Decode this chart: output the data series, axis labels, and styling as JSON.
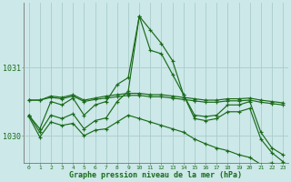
{
  "title": "Graphe pression niveau de la mer (hPa)",
  "bg_color": "#cce8e8",
  "grid_color": "#aacccc",
  "line_color": "#1a6b1a",
  "x_labels": [
    "0",
    "1",
    "2",
    "3",
    "4",
    "5",
    "6",
    "7",
    "8",
    "9",
    "10",
    "11",
    "12",
    "13",
    "14",
    "15",
    "16",
    "17",
    "18",
    "19",
    "20",
    "21",
    "22",
    "23"
  ],
  "yticks": [
    1030,
    1031
  ],
  "ylim": [
    1029.6,
    1031.95
  ],
  "xlim": [
    -0.5,
    23.5
  ],
  "series": [
    [
      1030.3,
      1030.1,
      1030.5,
      1030.45,
      1030.55,
      1030.3,
      1030.45,
      1030.5,
      1030.75,
      1030.85,
      1031.75,
      1031.55,
      1031.35,
      1031.1,
      1030.6,
      1030.3,
      1030.28,
      1030.3,
      1030.45,
      1030.45,
      1030.5,
      1030.05,
      1029.82,
      1029.72
    ],
    [
      1030.52,
      1030.52,
      1030.58,
      1030.56,
      1030.6,
      1030.52,
      1030.55,
      1030.58,
      1030.6,
      1030.62,
      1030.62,
      1030.6,
      1030.6,
      1030.58,
      1030.56,
      1030.54,
      1030.52,
      1030.52,
      1030.54,
      1030.54,
      1030.55,
      1030.52,
      1030.5,
      1030.48
    ],
    [
      1030.52,
      1030.52,
      1030.56,
      1030.54,
      1030.58,
      1030.5,
      1030.53,
      1030.55,
      1030.57,
      1030.59,
      1030.59,
      1030.57,
      1030.57,
      1030.55,
      1030.53,
      1030.51,
      1030.49,
      1030.49,
      1030.51,
      1030.51,
      1030.52,
      1030.49,
      1030.47,
      1030.45
    ],
    [
      1030.3,
      1030.05,
      1030.3,
      1030.25,
      1030.32,
      1030.1,
      1030.22,
      1030.26,
      1030.5,
      1030.65,
      1031.75,
      1031.25,
      1031.2,
      1030.9,
      1030.6,
      1030.25,
      1030.22,
      1030.25,
      1030.35,
      1030.35,
      1030.4,
      1029.95,
      1029.75,
      1029.62
    ],
    [
      1030.28,
      1029.98,
      1030.2,
      1030.15,
      1030.18,
      1030.0,
      1030.08,
      1030.1,
      1030.2,
      1030.3,
      1030.25,
      1030.2,
      1030.15,
      1030.1,
      1030.05,
      1029.95,
      1029.88,
      1029.82,
      1029.78,
      1029.72,
      1029.68,
      1029.58,
      1029.6,
      1029.52
    ]
  ]
}
